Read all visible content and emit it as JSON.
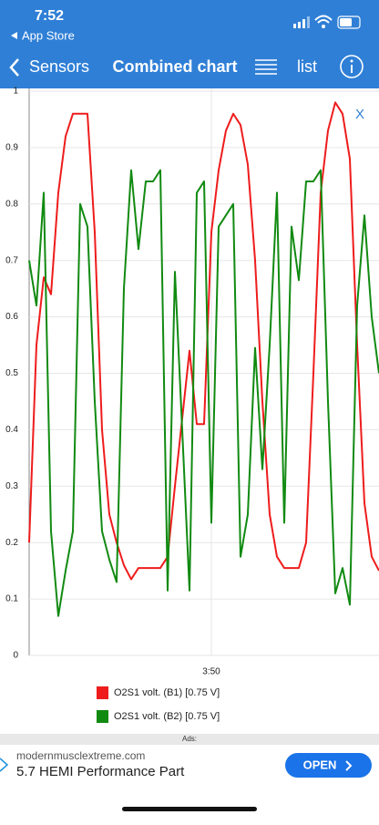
{
  "status_bar": {
    "time": "7:52",
    "back_app": "App Store"
  },
  "nav": {
    "back": "Sensors",
    "title": "Combined chart",
    "list": "list"
  },
  "chart_data": {
    "type": "line",
    "close_label": "X",
    "categories": [
      null,
      null,
      null,
      null,
      null,
      null,
      null,
      null,
      null,
      null,
      null,
      null,
      null,
      null,
      null,
      null,
      null,
      null,
      null,
      null,
      null,
      null,
      null,
      null,
      null,
      "3:50",
      null,
      null,
      null,
      null,
      null,
      null,
      null,
      null,
      null,
      null,
      null,
      null,
      null,
      null,
      null,
      null,
      null,
      null,
      null,
      null,
      null,
      null,
      null
    ],
    "ylim": [
      0,
      1
    ],
    "yticks": [
      0,
      0.1,
      0.2,
      0.3,
      0.4,
      0.5,
      0.6,
      0.7,
      0.8,
      0.9,
      1
    ],
    "grid": true,
    "series": [
      {
        "name": "O2S1 volt. (B1) [0.75 V]",
        "color": "#ee1c1c",
        "values": [
          0.2,
          0.55,
          0.67,
          0.64,
          0.82,
          0.92,
          0.96,
          0.96,
          0.96,
          0.75,
          0.4,
          0.25,
          0.2,
          0.16,
          0.135,
          0.155,
          0.155,
          0.155,
          0.155,
          0.175,
          0.3,
          0.42,
          0.54,
          0.41,
          0.41,
          0.75,
          0.86,
          0.93,
          0.96,
          0.94,
          0.87,
          0.7,
          0.45,
          0.25,
          0.175,
          0.155,
          0.155,
          0.155,
          0.2,
          0.5,
          0.82,
          0.93,
          0.98,
          0.96,
          0.88,
          0.55,
          0.27,
          0.175,
          0.15
        ]
      },
      {
        "name": "O2S1 volt. (B2) [0.75 V]",
        "color": "#118a11",
        "values": [
          0.7,
          0.62,
          0.82,
          0.22,
          0.07,
          0.15,
          0.22,
          0.8,
          0.76,
          0.45,
          0.22,
          0.17,
          0.13,
          0.65,
          0.86,
          0.72,
          0.84,
          0.84,
          0.86,
          0.115,
          0.68,
          0.4,
          0.115,
          0.82,
          0.84,
          0.235,
          0.76,
          0.78,
          0.8,
          0.175,
          0.25,
          0.545,
          0.33,
          0.55,
          0.82,
          0.235,
          0.76,
          0.665,
          0.84,
          0.84,
          0.86,
          0.45,
          0.11,
          0.155,
          0.09,
          0.62,
          0.78,
          0.6,
          0.5
        ]
      }
    ]
  },
  "ad": {
    "heading": "Ads:",
    "domain": "modernmusclextreme.com",
    "headline": "5.7 HEMI Performance Part",
    "button": "OPEN"
  }
}
